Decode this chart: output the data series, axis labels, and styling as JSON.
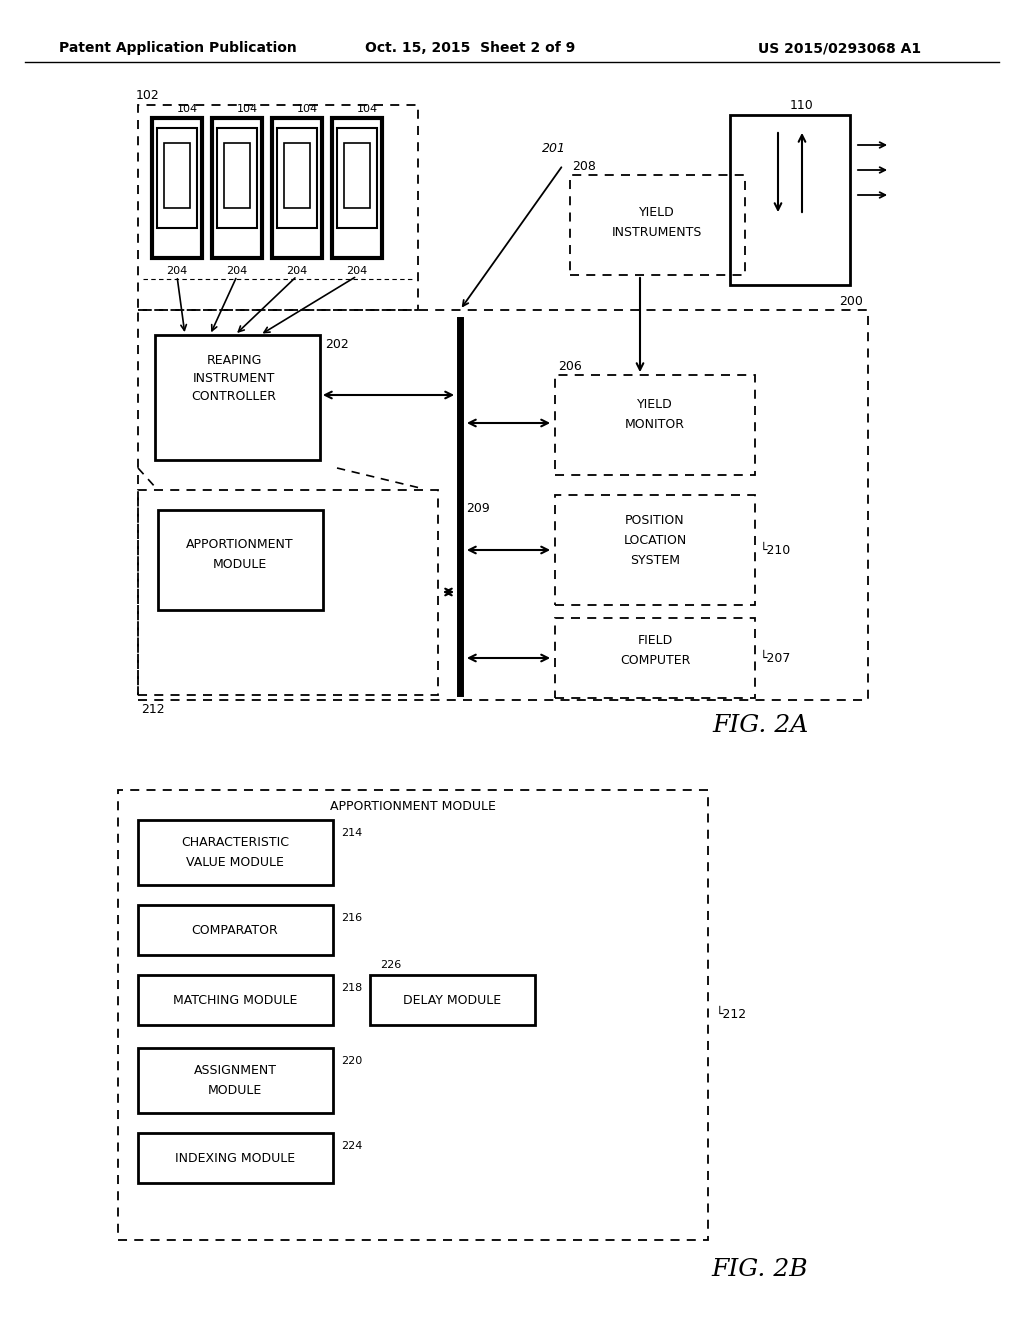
{
  "bg_color": "#ffffff",
  "header_left": "Patent Application Publication",
  "header_center": "Oct. 15, 2015  Sheet 2 of 9",
  "header_right": "US 2015/0293068 A1",
  "fig2a_label": "FIG. 2A",
  "fig2b_label": "FIG. 2B"
}
